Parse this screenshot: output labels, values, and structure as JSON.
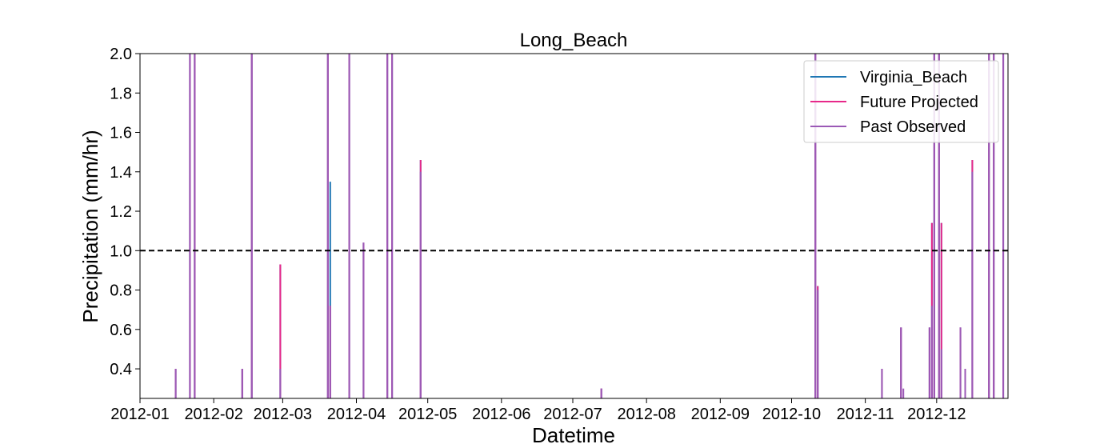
{
  "chart_data": {
    "type": "line",
    "title": "Long_Beach",
    "xlabel": "Datetime",
    "ylabel": "Precipitation (mm/hr)",
    "xlim": [
      "2012-01-01",
      "2012-12-31"
    ],
    "ylim": [
      0.25,
      2.0
    ],
    "x_ticks": [
      "2012-01",
      "2012-02",
      "2012-03",
      "2012-04",
      "2012-05",
      "2012-06",
      "2012-07",
      "2012-08",
      "2012-09",
      "2012-10",
      "2012-11",
      "2012-12"
    ],
    "y_ticks": [
      "0.4",
      "0.6",
      "0.8",
      "1.0",
      "1.2",
      "1.4",
      "1.6",
      "1.8",
      "2.0"
    ],
    "threshold": {
      "value": 1.0,
      "style": "dashed",
      "color": "#000000"
    },
    "grid": false,
    "legend": "top-right",
    "baseline": 0.25,
    "series": [
      {
        "name": "Virginia_Beach",
        "color": "#1f77b4",
        "points": [
          [
            "2012-01-16",
            0.4
          ],
          [
            "2012-01-22",
            2.0
          ],
          [
            "2012-01-24",
            2.0
          ],
          [
            "2012-02-13",
            0.4
          ],
          [
            "2012-02-17",
            2.0
          ],
          [
            "2012-02-29",
            0.93
          ],
          [
            "2012-03-20",
            2.0
          ],
          [
            "2012-03-21",
            1.35
          ],
          [
            "2012-03-29",
            2.0
          ],
          [
            "2012-04-04",
            1.04
          ],
          [
            "2012-04-14",
            2.0
          ],
          [
            "2012-04-16",
            2.0
          ],
          [
            "2012-04-28",
            1.46
          ],
          [
            "2012-07-13",
            0.3
          ],
          [
            "2012-10-11",
            2.0
          ],
          [
            "2012-10-12",
            0.82
          ],
          [
            "2012-11-08",
            0.4
          ],
          [
            "2012-11-16",
            0.61
          ],
          [
            "2012-11-28",
            0.61
          ],
          [
            "2012-11-29",
            1.14
          ],
          [
            "2012-11-30",
            2.0
          ],
          [
            "2012-12-02",
            2.0
          ],
          [
            "2012-12-03",
            1.14
          ],
          [
            "2012-12-11",
            0.61
          ],
          [
            "2012-12-13",
            0.4
          ],
          [
            "2012-12-16",
            1.46
          ],
          [
            "2012-12-23",
            2.0
          ],
          [
            "2012-12-25",
            2.0
          ],
          [
            "2012-12-29",
            2.0
          ]
        ]
      },
      {
        "name": "Future Projected",
        "color": "#e7298a",
        "points": [
          [
            "2012-01-16",
            0.4
          ],
          [
            "2012-01-22",
            2.0
          ],
          [
            "2012-01-24",
            2.0
          ],
          [
            "2012-02-13",
            0.4
          ],
          [
            "2012-02-17",
            2.0
          ],
          [
            "2012-02-29",
            0.93
          ],
          [
            "2012-03-20",
            2.0
          ],
          [
            "2012-03-21",
            0.72
          ],
          [
            "2012-03-29",
            2.0
          ],
          [
            "2012-04-04",
            1.04
          ],
          [
            "2012-04-14",
            2.0
          ],
          [
            "2012-04-16",
            2.0
          ],
          [
            "2012-04-28",
            1.46
          ],
          [
            "2012-07-13",
            0.3
          ],
          [
            "2012-10-11",
            2.0
          ],
          [
            "2012-10-12",
            0.82
          ],
          [
            "2012-11-08",
            0.4
          ],
          [
            "2012-11-16",
            0.61
          ],
          [
            "2012-11-28",
            0.61
          ],
          [
            "2012-11-29",
            1.14
          ],
          [
            "2012-11-30",
            2.0
          ],
          [
            "2012-12-02",
            2.0
          ],
          [
            "2012-12-03",
            1.14
          ],
          [
            "2012-12-11",
            0.61
          ],
          [
            "2012-12-13",
            0.4
          ],
          [
            "2012-12-16",
            1.46
          ],
          [
            "2012-12-23",
            2.0
          ],
          [
            "2012-12-25",
            2.0
          ],
          [
            "2012-12-29",
            2.0
          ]
        ]
      },
      {
        "name": "Past Observed",
        "color": "#9b59b6",
        "points": [
          [
            "2012-01-16",
            0.4
          ],
          [
            "2012-01-22",
            2.0
          ],
          [
            "2012-01-24",
            2.0
          ],
          [
            "2012-02-13",
            0.4
          ],
          [
            "2012-02-17",
            2.0
          ],
          [
            "2012-02-29",
            0.4
          ],
          [
            "2012-03-20",
            2.0
          ],
          [
            "2012-03-21",
            0.72
          ],
          [
            "2012-03-29",
            2.0
          ],
          [
            "2012-04-04",
            1.04
          ],
          [
            "2012-04-14",
            2.0
          ],
          [
            "2012-04-16",
            2.0
          ],
          [
            "2012-04-28",
            1.4
          ],
          [
            "2012-07-13",
            0.3
          ],
          [
            "2012-10-11",
            2.0
          ],
          [
            "2012-10-12",
            0.8
          ],
          [
            "2012-11-08",
            0.4
          ],
          [
            "2012-11-16",
            0.61
          ],
          [
            "2012-11-17",
            0.3
          ],
          [
            "2012-11-28",
            0.61
          ],
          [
            "2012-11-29",
            0.72
          ],
          [
            "2012-11-30",
            2.0
          ],
          [
            "2012-12-02",
            2.0
          ],
          [
            "2012-12-03",
            0.5
          ],
          [
            "2012-12-11",
            0.61
          ],
          [
            "2012-12-13",
            0.4
          ],
          [
            "2012-12-16",
            1.4
          ],
          [
            "2012-12-23",
            2.0
          ],
          [
            "2012-12-25",
            2.0
          ],
          [
            "2012-12-29",
            2.0
          ]
        ]
      }
    ]
  }
}
